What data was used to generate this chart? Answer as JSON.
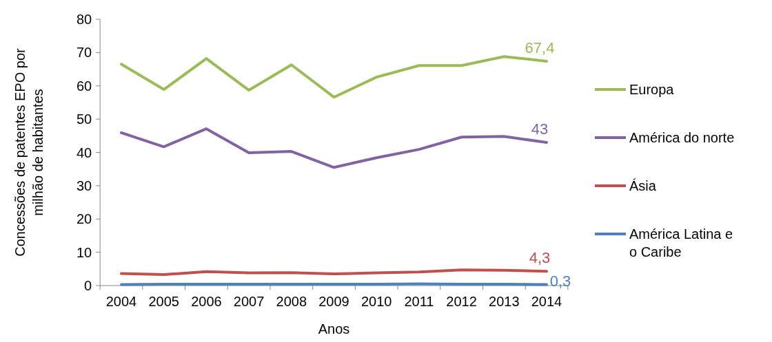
{
  "chart_data": {
    "type": "line",
    "xlabel": "Anos",
    "ylabel": "Concessões de patentes EPO por milhão de habitantes",
    "categories": [
      "2004",
      "2005",
      "2006",
      "2007",
      "2008",
      "2009",
      "2010",
      "2011",
      "2012",
      "2013",
      "2014"
    ],
    "series": [
      {
        "name": "Europa",
        "color": "#9bbb59",
        "values": [
          66.5,
          58.9,
          68.2,
          58.7,
          66.3,
          56.6,
          62.6,
          66.1,
          66.1,
          68.8,
          67.4
        ],
        "value_labels": [
          null,
          null,
          null,
          null,
          null,
          null,
          null,
          null,
          null,
          null,
          "67,4"
        ]
      },
      {
        "name": "América do norte",
        "color": "#8064a2",
        "values": [
          45.9,
          41.7,
          47.1,
          39.9,
          40.3,
          35.5,
          38.4,
          40.9,
          44.6,
          44.8,
          43
        ],
        "value_labels": [
          null,
          null,
          null,
          null,
          null,
          null,
          null,
          null,
          null,
          null,
          "43"
        ]
      },
      {
        "name": "Ásia",
        "color": "#c0504d",
        "values": [
          3.6,
          3.3,
          4.2,
          3.8,
          3.9,
          3.5,
          3.8,
          4.1,
          4.7,
          4.6,
          4.3
        ],
        "value_labels": [
          null,
          null,
          null,
          null,
          null,
          null,
          null,
          null,
          null,
          null,
          "4,3"
        ]
      },
      {
        "name": "América Latina e o Caribe",
        "color": "#4f81bd",
        "values": [
          0.3,
          0.4,
          0.4,
          0.4,
          0.4,
          0.4,
          0.4,
          0.5,
          0.4,
          0.4,
          0.3
        ],
        "value_labels": [
          null,
          null,
          null,
          null,
          null,
          null,
          null,
          null,
          null,
          null,
          "0,3"
        ]
      }
    ],
    "ylim": [
      0,
      80
    ],
    "yticks": [
      0,
      10,
      20,
      30,
      40,
      50,
      60,
      70,
      80
    ],
    "legend": "right",
    "marker": "none",
    "line_style": "solid",
    "grid": false
  }
}
